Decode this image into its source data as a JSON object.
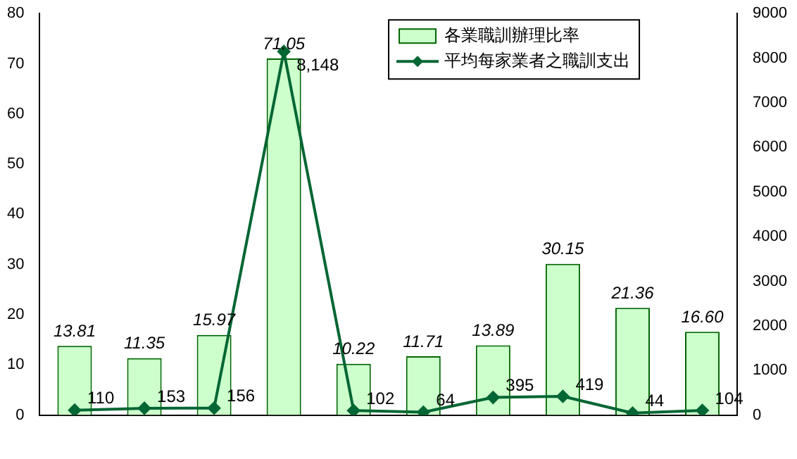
{
  "chart_data": {
    "type": "bar",
    "categories": [
      null,
      null,
      null,
      null,
      null,
      null,
      null,
      null,
      null,
      null
    ],
    "series": [
      {
        "name": "各業職訓辦理比率",
        "color": "#ccffcc",
        "values": [
          13.81,
          11.35,
          15.97,
          71.05,
          10.22,
          11.71,
          13.89,
          30.15,
          21.36,
          16.6
        ],
        "value_labels": [
          "13.81",
          "11.35",
          "15.97",
          "71.05",
          "10.22",
          "11.71",
          "13.89",
          "30.15",
          "21.36",
          "16.60"
        ]
      },
      {
        "name": "平均每家業者之職訓支出",
        "type": "line",
        "axis": "y2",
        "color": "#006633",
        "marker": "diamond",
        "values": [
          110,
          153,
          156,
          8148,
          102,
          64,
          395,
          419,
          44,
          104
        ],
        "value_labels": [
          "110",
          "153",
          "156",
          "8,148",
          "102",
          "64",
          "395",
          "419",
          "44",
          "104"
        ]
      }
    ],
    "ylim": [
      0,
      80
    ],
    "yticks": [
      0,
      10,
      20,
      30,
      40,
      50,
      60,
      70,
      80
    ],
    "y2lim": [
      0,
      9000
    ],
    "y2ticks": [
      0,
      1000,
      2000,
      3000,
      4000,
      5000,
      6000,
      7000,
      8000,
      9000
    ],
    "grid": false,
    "legend": "top right"
  }
}
